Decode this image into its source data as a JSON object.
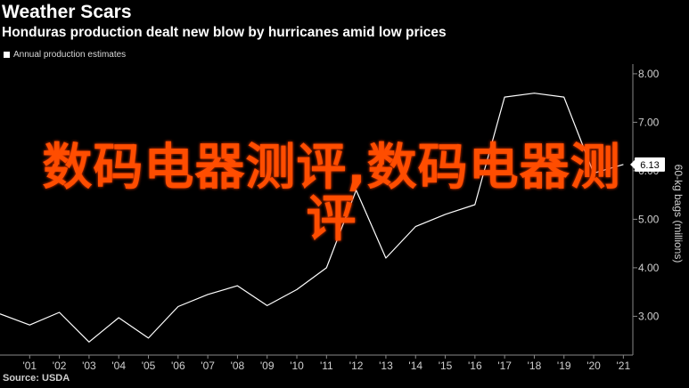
{
  "header": {
    "title": "Weather Scars",
    "subtitle": "Honduras production dealt new blow by hurricanes amid low prices"
  },
  "legend": {
    "label": "Annual production estimates"
  },
  "source": "Source: USDA",
  "overlay": {
    "text": "数码电器测评,数码电器测评"
  },
  "chart_data": {
    "type": "line",
    "title": "Weather Scars",
    "subtitle": "Honduras production dealt new blow by hurricanes amid low prices",
    "ylabel": "60-kg bags (millions)",
    "ylim": [
      2.2,
      8.2
    ],
    "y_ticks": [
      3.0,
      4.0,
      5.0,
      6.0,
      7.0,
      8.0
    ],
    "y_tick_labels": [
      "3.00",
      "4.00",
      "5.00",
      "6.00",
      "7.00",
      "8.00"
    ],
    "x_tick_labels": [
      "'01",
      "'02",
      "'03",
      "'04",
      "'05",
      "'06",
      "'07",
      "'08",
      "'09",
      "'10",
      "'11",
      "'12",
      "'13",
      "'14",
      "'15",
      "'16",
      "'17",
      "'18",
      "'19",
      "'20",
      "'21"
    ],
    "grid": false,
    "legend_position": "top-left",
    "series": [
      {
        "name": "Annual production estimates",
        "color": "#ffffff",
        "x": [
          2000,
          2001,
          2002,
          2003,
          2004,
          2005,
          2006,
          2007,
          2008,
          2009,
          2010,
          2011,
          2012,
          2013,
          2014,
          2015,
          2016,
          2017,
          2018,
          2019,
          2020,
          2021
        ],
        "values": [
          3.05,
          2.82,
          3.08,
          2.47,
          2.97,
          2.55,
          3.2,
          3.45,
          3.63,
          3.22,
          3.55,
          4.0,
          5.6,
          4.2,
          4.85,
          5.1,
          5.3,
          7.52,
          7.6,
          7.52,
          5.95,
          6.13
        ]
      }
    ],
    "last_value_label": "6.13"
  }
}
